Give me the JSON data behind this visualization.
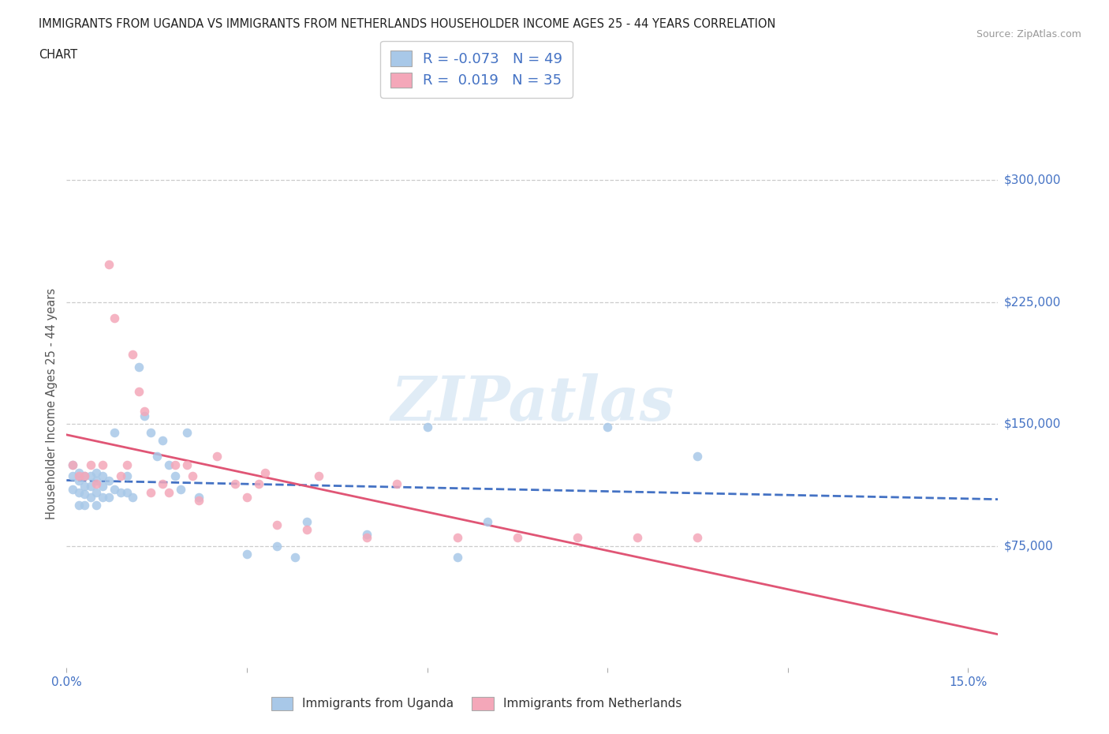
{
  "title_line1": "IMMIGRANTS FROM UGANDA VS IMMIGRANTS FROM NETHERLANDS HOUSEHOLDER INCOME AGES 25 - 44 YEARS CORRELATION",
  "title_line2": "CHART",
  "source": "Source: ZipAtlas.com",
  "ylabel": "Householder Income Ages 25 - 44 years",
  "xlim": [
    0.0,
    0.155
  ],
  "ylim": [
    0,
    325000
  ],
  "ytick_vals": [
    75000,
    150000,
    225000,
    300000
  ],
  "ytick_labels": [
    "$75,000",
    "$150,000",
    "$225,000",
    "$300,000"
  ],
  "xtick_vals": [
    0.0,
    0.03,
    0.06,
    0.09,
    0.12,
    0.15
  ],
  "xtick_labels": [
    "0.0%",
    "",
    "",
    "",
    "",
    "15.0%"
  ],
  "grid_color": "#cccccc",
  "background_color": "#ffffff",
  "watermark_text": "ZIPatlas",
  "series": [
    {
      "name": "Immigrants from Uganda",
      "R": -0.073,
      "N": 49,
      "scatter_color": "#a8c8e8",
      "line_color": "#4472c4",
      "line_style_solid": "--",
      "x": [
        0.001,
        0.001,
        0.001,
        0.002,
        0.002,
        0.002,
        0.002,
        0.003,
        0.003,
        0.003,
        0.003,
        0.004,
        0.004,
        0.004,
        0.005,
        0.005,
        0.005,
        0.005,
        0.006,
        0.006,
        0.006,
        0.007,
        0.007,
        0.008,
        0.008,
        0.009,
        0.01,
        0.01,
        0.011,
        0.012,
        0.013,
        0.014,
        0.015,
        0.016,
        0.017,
        0.018,
        0.019,
        0.02,
        0.022,
        0.03,
        0.035,
        0.038,
        0.04,
        0.05,
        0.06,
        0.065,
        0.07,
        0.09,
        0.105
      ],
      "y": [
        125000,
        118000,
        110000,
        120000,
        115000,
        108000,
        100000,
        118000,
        112000,
        107000,
        100000,
        118000,
        112000,
        105000,
        120000,
        115000,
        108000,
        100000,
        118000,
        112000,
        105000,
        115000,
        105000,
        145000,
        110000,
        108000,
        118000,
        108000,
        105000,
        185000,
        155000,
        145000,
        130000,
        140000,
        125000,
        118000,
        110000,
        145000,
        105000,
        70000,
        75000,
        68000,
        90000,
        82000,
        148000,
        68000,
        90000,
        148000,
        130000
      ]
    },
    {
      "name": "Immigrants from Netherlands",
      "R": 0.019,
      "N": 35,
      "scatter_color": "#f4a7b9",
      "line_color": "#e05575",
      "line_style_solid": "-",
      "x": [
        0.001,
        0.002,
        0.003,
        0.004,
        0.005,
        0.006,
        0.007,
        0.008,
        0.009,
        0.01,
        0.011,
        0.012,
        0.013,
        0.014,
        0.016,
        0.017,
        0.018,
        0.02,
        0.021,
        0.022,
        0.025,
        0.028,
        0.03,
        0.032,
        0.033,
        0.035,
        0.04,
        0.042,
        0.05,
        0.055,
        0.065,
        0.075,
        0.085,
        0.095,
        0.105
      ],
      "y": [
        125000,
        118000,
        118000,
        125000,
        113000,
        125000,
        248000,
        215000,
        118000,
        125000,
        193000,
        170000,
        158000,
        108000,
        113000,
        108000,
        125000,
        125000,
        118000,
        103000,
        130000,
        113000,
        105000,
        113000,
        120000,
        88000,
        85000,
        118000,
        80000,
        113000,
        80000,
        80000,
        80000,
        80000,
        80000
      ]
    }
  ]
}
